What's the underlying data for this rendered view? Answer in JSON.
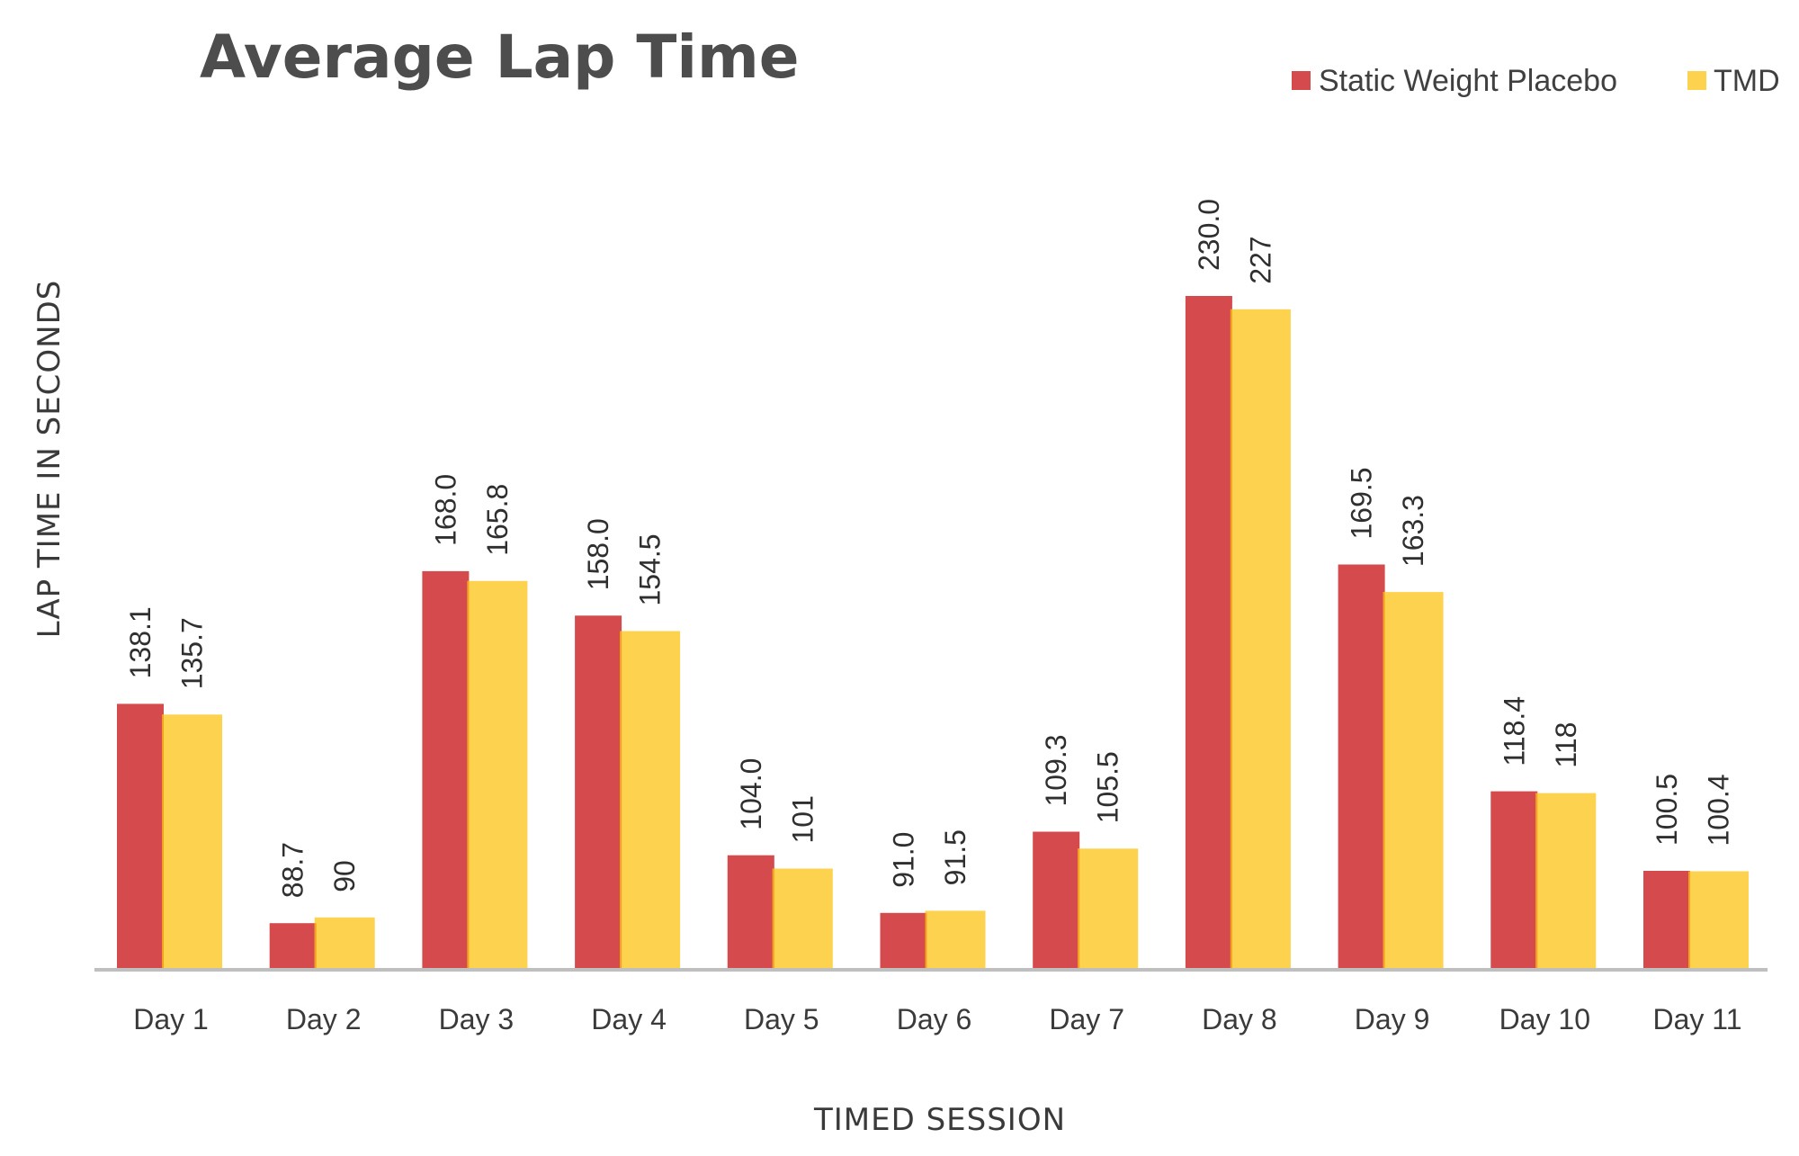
{
  "chart_data": {
    "type": "bar",
    "title": "Average Lap Time",
    "xlabel": "TIMED SESSION",
    "ylabel": "LAP TIME IN SECONDS",
    "categories": [
      "Day 1",
      "Day 2",
      "Day 3",
      "Day 4",
      "Day 5",
      "Day 6",
      "Day 7",
      "Day 8",
      "Day 9",
      "Day 10",
      "Day 11"
    ],
    "series": [
      {
        "name": "Static Weight Placebo",
        "color": "#d44a4d",
        "values": [
          138.1,
          88.7,
          168.0,
          158.0,
          104.0,
          91.0,
          109.3,
          230.0,
          169.5,
          118.4,
          100.5
        ],
        "labels": [
          "138.1",
          "88.7",
          "168.0",
          "158.0",
          "104.0",
          "91.0",
          "109.3",
          "230.0",
          "169.5",
          "118.4",
          "100.5"
        ]
      },
      {
        "name": "TMD",
        "color": "#fdd24e",
        "overlap_color": "#f4a11f",
        "values": [
          135.7,
          90,
          165.8,
          154.5,
          101,
          91.5,
          105.5,
          227,
          163.3,
          118,
          100.4
        ],
        "labels": [
          "135.7",
          "90",
          "165.8",
          "154.5",
          "101",
          "91.5",
          "105.5",
          "227",
          "163.3",
          "118",
          "100.4"
        ]
      }
    ],
    "ylim": [
      78.4,
      245
    ],
    "grid": false,
    "legend_position": "top-right",
    "axis_color": "#bfbfbf"
  }
}
